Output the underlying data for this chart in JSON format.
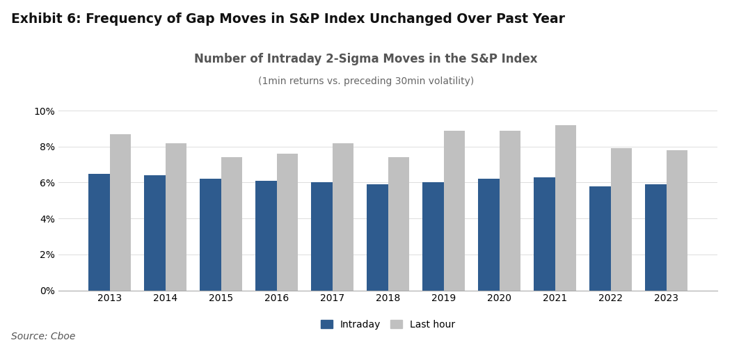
{
  "title_exhibit": "Exhibit 6: Frequency of Gap Moves in S&P Index Unchanged Over Past Year",
  "chart_title": "Number of Intraday 2-Sigma Moves in the S&P Index",
  "chart_subtitle": "(1min returns vs. preceding 30min volatility)",
  "source": "Source: Cboe",
  "years": [
    2013,
    2014,
    2015,
    2016,
    2017,
    2018,
    2019,
    2020,
    2021,
    2022,
    2023
  ],
  "intraday": [
    0.065,
    0.064,
    0.062,
    0.061,
    0.06,
    0.059,
    0.06,
    0.062,
    0.063,
    0.058,
    0.059
  ],
  "last_hour": [
    0.087,
    0.082,
    0.074,
    0.076,
    0.082,
    0.074,
    0.089,
    0.089,
    0.092,
    0.079,
    0.078
  ],
  "intraday_color": "#2E5B8E",
  "last_hour_color": "#C0C0C0",
  "background_color": "#FFFFFF",
  "ylim": [
    0,
    0.105
  ],
  "yticks": [
    0.0,
    0.02,
    0.04,
    0.06,
    0.08,
    0.1
  ],
  "legend_labels": [
    "Intraday",
    "Last hour"
  ],
  "bar_width": 0.38,
  "exhibit_fontsize": 13.5,
  "chart_title_fontsize": 12,
  "subtitle_fontsize": 10,
  "axis_fontsize": 10,
  "source_fontsize": 10
}
